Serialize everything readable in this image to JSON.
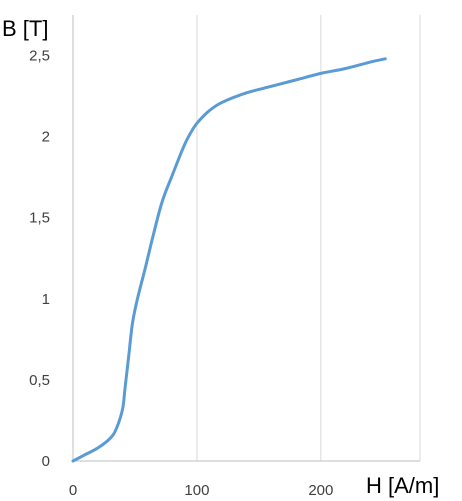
{
  "chart_data": {
    "type": "line",
    "ylabel": "B [T]",
    "xlabel": "H [A/m]",
    "xlim": [
      0,
      280
    ],
    "ylim": [
      0,
      2.75
    ],
    "x_ticks": [
      "0",
      "100",
      "200"
    ],
    "x_tick_values": [
      0,
      100,
      200
    ],
    "y_ticks": [
      "0",
      "0,5",
      "1",
      "1,5",
      "2",
      "2,5"
    ],
    "y_tick_values": [
      0,
      0.5,
      1,
      1.5,
      2,
      2.5
    ],
    "grid": "vertical",
    "series": [
      {
        "color": "#5b9bd5",
        "x": [
          0,
          10,
          20,
          30,
          35,
          40,
          42,
          45,
          48,
          52,
          58,
          65,
          72,
          80,
          90,
          97,
          102,
          110,
          120,
          140,
          160,
          180,
          200,
          220,
          240,
          252
        ],
        "y": [
          0,
          0.04,
          0.08,
          0.14,
          0.2,
          0.32,
          0.45,
          0.65,
          0.85,
          1.0,
          1.18,
          1.4,
          1.6,
          1.76,
          1.95,
          2.05,
          2.1,
          2.16,
          2.21,
          2.27,
          2.31,
          2.35,
          2.39,
          2.42,
          2.46,
          2.48
        ]
      }
    ]
  }
}
